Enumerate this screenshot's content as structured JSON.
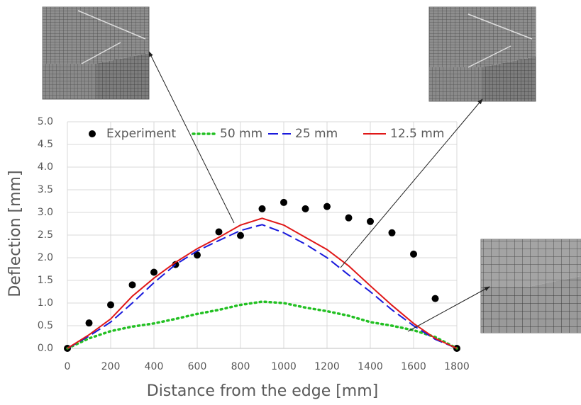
{
  "chart_data": {
    "type": "line",
    "x_label": "Distance from the edge [mm]",
    "y_label": "Deflection [mm]",
    "x": [
      0,
      100,
      200,
      300,
      400,
      500,
      600,
      700,
      800,
      900,
      1000,
      1100,
      1200,
      1300,
      1400,
      1500,
      1600,
      1700,
      1800
    ],
    "series": [
      {
        "name": "Experiment",
        "color": "#000000",
        "style": "marker",
        "values": [
          0,
          0.56,
          0.96,
          1.4,
          1.68,
          1.85,
          2.06,
          2.57,
          2.49,
          3.08,
          3.22,
          3.08,
          3.13,
          2.88,
          2.8,
          2.55,
          2.08,
          1.1,
          0
        ]
      },
      {
        "name": "50 mm",
        "color": "#22c022",
        "style": "dotted",
        "values": [
          0,
          0.22,
          0.38,
          0.48,
          0.55,
          0.65,
          0.76,
          0.85,
          0.96,
          1.03,
          1.0,
          0.9,
          0.82,
          0.72,
          0.58,
          0.5,
          0.4,
          0.25,
          0
        ]
      },
      {
        "name": "25 mm",
        "color": "#1a1adc",
        "style": "dashed",
        "values": [
          0,
          0.27,
          0.58,
          1.0,
          1.45,
          1.85,
          2.15,
          2.38,
          2.6,
          2.73,
          2.55,
          2.3,
          2.0,
          1.62,
          1.25,
          0.85,
          0.5,
          0.2,
          0
        ]
      },
      {
        "name": "12.5 mm",
        "color": "#e01818",
        "style": "solid",
        "values": [
          0,
          0.3,
          0.65,
          1.15,
          1.55,
          1.9,
          2.2,
          2.45,
          2.72,
          2.87,
          2.72,
          2.45,
          2.18,
          1.82,
          1.38,
          0.95,
          0.55,
          0.22,
          0
        ]
      }
    ],
    "xlim": [
      0,
      1800
    ],
    "xticks": [
      0,
      200,
      400,
      600,
      800,
      1000,
      1200,
      1400,
      1600,
      1800
    ],
    "ylim": [
      0,
      5
    ],
    "yticks": [
      {
        "value": 0,
        "label": "0.0"
      },
      {
        "value": 0.5,
        "label": "0.5"
      },
      {
        "value": 1,
        "label": "1.0"
      },
      {
        "value": 1.5,
        "label": "1.5"
      },
      {
        "value": 2,
        "label": "2.0"
      },
      {
        "value": 2.5,
        "label": "2.5"
      },
      {
        "value": 3,
        "label": "3.0"
      },
      {
        "value": 3.5,
        "label": "3.5"
      },
      {
        "value": 4,
        "label": "4.0"
      },
      {
        "value": 4.5,
        "label": "4.5"
      },
      {
        "value": 5,
        "label": "5.0"
      }
    ],
    "grid": true,
    "legend": "top"
  }
}
